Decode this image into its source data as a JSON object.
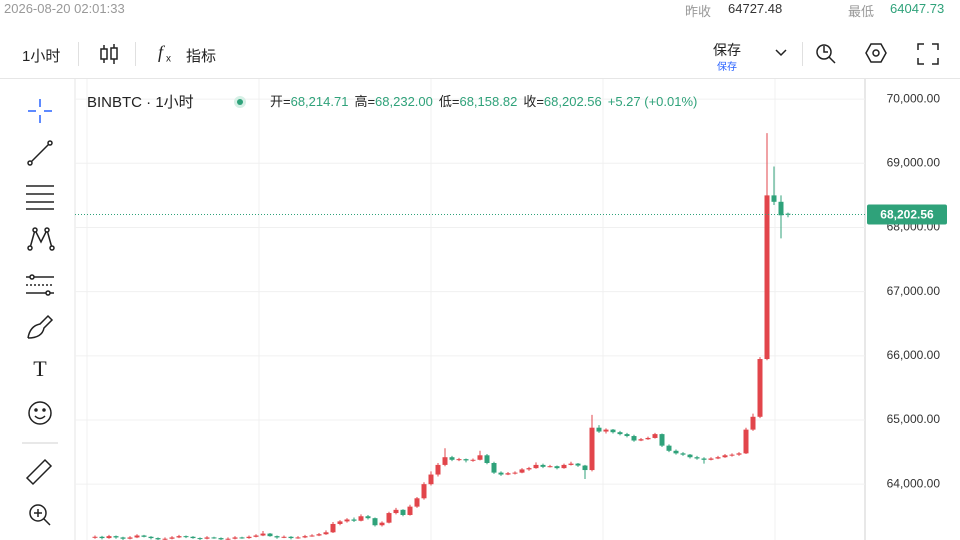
{
  "header": {
    "datetime": "2026-08-20 02:01:33",
    "prev_close_label": "昨收",
    "prev_close": "64727.48",
    "low_label": "最低",
    "low": "64047.73"
  },
  "toolbar": {
    "interval": "1小时",
    "indicators": "指标",
    "save": "保存",
    "save_sub": "保存"
  },
  "chart_data": {
    "type": "candlestick",
    "title": "BINBTC · 1小时",
    "legend": {
      "labels": [
        "开=",
        "高=",
        "低=",
        "收="
      ],
      "values": [
        "68,214.71",
        "68,232.00",
        "68,158.82",
        "68,202.56"
      ],
      "change": "+5.27 (+0.01%)"
    },
    "up_color": "#e2454b",
    "down_color": "#2fa27a",
    "ylim": [
      63130,
      70220
    ],
    "yticks": [
      {
        "value": 64000,
        "label": "64,000.00"
      },
      {
        "value": 65000,
        "label": "65,000.00"
      },
      {
        "value": 66000,
        "label": "66,000.00"
      },
      {
        "value": 67000,
        "label": "67,000.00"
      },
      {
        "value": 68000,
        "label": "68,000.00"
      },
      {
        "value": 69000,
        "label": "69,000.00"
      },
      {
        "value": 70000,
        "label": "70,000.00"
      }
    ],
    "last_price_label": "68,202.56",
    "candles": [
      [
        63170,
        63200,
        63150,
        63180
      ],
      [
        63180,
        63195,
        63140,
        63160
      ],
      [
        63160,
        63210,
        63150,
        63190
      ],
      [
        63190,
        63200,
        63150,
        63170
      ],
      [
        63170,
        63180,
        63130,
        63150
      ],
      [
        63150,
        63190,
        63140,
        63170
      ],
      [
        63170,
        63220,
        63160,
        63200
      ],
      [
        63200,
        63210,
        63170,
        63180
      ],
      [
        63180,
        63190,
        63140,
        63160
      ],
      [
        63160,
        63170,
        63130,
        63140
      ],
      [
        63140,
        63170,
        63130,
        63150
      ],
      [
        63150,
        63190,
        63140,
        63170
      ],
      [
        63170,
        63210,
        63160,
        63190
      ],
      [
        63190,
        63200,
        63160,
        63180
      ],
      [
        63180,
        63190,
        63150,
        63160
      ],
      [
        63160,
        63170,
        63130,
        63150
      ],
      [
        63150,
        63190,
        63140,
        63170
      ],
      [
        63170,
        63180,
        63150,
        63160
      ],
      [
        63160,
        63170,
        63130,
        63140
      ],
      [
        63140,
        63170,
        63130,
        63150
      ],
      [
        63150,
        63190,
        63140,
        63170
      ],
      [
        63170,
        63180,
        63150,
        63160
      ],
      [
        63160,
        63200,
        63150,
        63180
      ],
      [
        63180,
        63220,
        63170,
        63200
      ],
      [
        63200,
        63270,
        63190,
        63230
      ],
      [
        63230,
        63240,
        63180,
        63190
      ],
      [
        63190,
        63200,
        63150,
        63170
      ],
      [
        63170,
        63200,
        63160,
        63180
      ],
      [
        63180,
        63190,
        63140,
        63160
      ],
      [
        63160,
        63190,
        63150,
        63170
      ],
      [
        63170,
        63210,
        63160,
        63190
      ],
      [
        63190,
        63220,
        63180,
        63200
      ],
      [
        63200,
        63240,
        63190,
        63220
      ],
      [
        63220,
        63280,
        63210,
        63250
      ],
      [
        63250,
        63410,
        63240,
        63380
      ],
      [
        63380,
        63440,
        63360,
        63420
      ],
      [
        63420,
        63470,
        63400,
        63450
      ],
      [
        63450,
        63480,
        63410,
        63430
      ],
      [
        63430,
        63530,
        63420,
        63500
      ],
      [
        63500,
        63520,
        63450,
        63470
      ],
      [
        63470,
        63480,
        63340,
        63360
      ],
      [
        63360,
        63420,
        63340,
        63400
      ],
      [
        63400,
        63570,
        63390,
        63550
      ],
      [
        63550,
        63630,
        63530,
        63600
      ],
      [
        63600,
        63610,
        63500,
        63520
      ],
      [
        63520,
        63680,
        63510,
        63650
      ],
      [
        63650,
        63800,
        63630,
        63780
      ],
      [
        63780,
        64030,
        63760,
        64000
      ],
      [
        64000,
        64200,
        63980,
        64150
      ],
      [
        64150,
        64330,
        64120,
        64300
      ],
      [
        64300,
        64560,
        64280,
        64420
      ],
      [
        64420,
        64440,
        64360,
        64380
      ],
      [
        64380,
        64410,
        64360,
        64390
      ],
      [
        64390,
        64400,
        64340,
        64370
      ],
      [
        64370,
        64400,
        64350,
        64380
      ],
      [
        64380,
        64520,
        64370,
        64450
      ],
      [
        64450,
        64470,
        64310,
        64330
      ],
      [
        64330,
        64350,
        64160,
        64180
      ],
      [
        64180,
        64200,
        64130,
        64150
      ],
      [
        64150,
        64190,
        64140,
        64170
      ],
      [
        64170,
        64200,
        64150,
        64180
      ],
      [
        64180,
        64250,
        64170,
        64230
      ],
      [
        64230,
        64270,
        64210,
        64250
      ],
      [
        64250,
        64340,
        64240,
        64300
      ],
      [
        64300,
        64320,
        64250,
        64270
      ],
      [
        64270,
        64300,
        64260,
        64280
      ],
      [
        64280,
        64290,
        64230,
        64250
      ],
      [
        64250,
        64320,
        64240,
        64300
      ],
      [
        64300,
        64350,
        64290,
        64320
      ],
      [
        64320,
        64330,
        64270,
        64290
      ],
      [
        64290,
        64300,
        64080,
        64220
      ],
      [
        64220,
        65080,
        64200,
        64880
      ],
      [
        64880,
        64920,
        64800,
        64820
      ],
      [
        64820,
        64870,
        64790,
        64850
      ],
      [
        64850,
        64860,
        64790,
        64810
      ],
      [
        64810,
        64830,
        64760,
        64780
      ],
      [
        64780,
        64800,
        64730,
        64750
      ],
      [
        64750,
        64770,
        64660,
        64680
      ],
      [
        64680,
        64720,
        64670,
        64700
      ],
      [
        64700,
        64740,
        64690,
        64720
      ],
      [
        64720,
        64800,
        64710,
        64780
      ],
      [
        64780,
        64790,
        64580,
        64600
      ],
      [
        64600,
        64620,
        64500,
        64520
      ],
      [
        64520,
        64540,
        64460,
        64480
      ],
      [
        64480,
        64500,
        64440,
        64460
      ],
      [
        64460,
        64470,
        64400,
        64420
      ],
      [
        64420,
        64440,
        64380,
        64400
      ],
      [
        64400,
        64420,
        64320,
        64380
      ],
      [
        64380,
        64420,
        64370,
        64400
      ],
      [
        64400,
        64440,
        64390,
        64420
      ],
      [
        64420,
        64470,
        64410,
        64450
      ],
      [
        64450,
        64480,
        64430,
        64460
      ],
      [
        64460,
        64500,
        64440,
        64480
      ],
      [
        64480,
        64880,
        64470,
        64850
      ],
      [
        64850,
        65100,
        64830,
        65050
      ],
      [
        65050,
        65980,
        65030,
        65950
      ],
      [
        65950,
        69470,
        65930,
        68500
      ],
      [
        68500,
        68950,
        68350,
        68400
      ],
      [
        68400,
        68500,
        67830,
        68190
      ],
      [
        68214.71,
        68232,
        68158.82,
        68202.56
      ]
    ]
  }
}
